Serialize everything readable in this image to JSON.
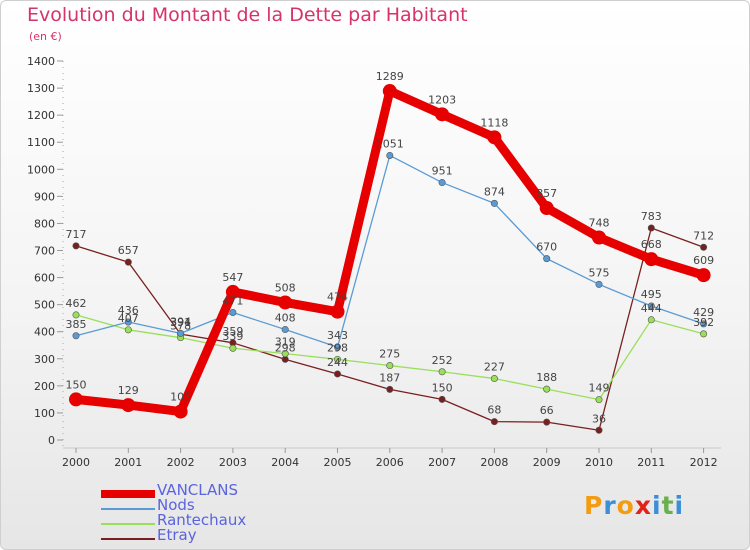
{
  "header": {
    "title": "Evolution du Montant de la Dette par Habitant",
    "unit": "(en €)"
  },
  "brand": {
    "letters": [
      "P",
      "r",
      "o",
      "x",
      "i",
      "t",
      "i"
    ],
    "colors": [
      "#f39c12",
      "#3a8fd8",
      "#f39c12",
      "#e2231a",
      "#3a8fd8",
      "#6ab04c",
      "#3a8fd8"
    ]
  },
  "chart_data": {
    "type": "line",
    "x": [
      "2000",
      "2001",
      "2002",
      "2003",
      "2004",
      "2005",
      "2006",
      "2007",
      "2008",
      "2009",
      "2010",
      "2011",
      "2012"
    ],
    "ylim": [
      0,
      1400
    ],
    "yticks": [
      0,
      100,
      200,
      300,
      400,
      500,
      600,
      700,
      800,
      900,
      1000,
      1100,
      1200,
      1300,
      1400
    ],
    "grid": false,
    "legend_position": "bottom-left",
    "series": [
      {
        "name": "Etray",
        "color": "#7a1f1f",
        "values": [
          717,
          657,
          391,
          359,
          298,
          244,
          187,
          150,
          68,
          66,
          36,
          783,
          712
        ]
      },
      {
        "name": "Rantechaux",
        "color": "#9adf5a",
        "values": [
          462,
          407,
          378,
          339,
          319,
          298,
          275,
          252,
          227,
          188,
          149,
          444,
          392
        ]
      },
      {
        "name": "Nods",
        "color": "#5b9bd5",
        "values": [
          385,
          436,
          394,
          471,
          408,
          343,
          1051,
          951,
          874,
          670,
          575,
          495,
          429
        ]
      },
      {
        "name": "VANCLANS",
        "color": "#e60000",
        "values": [
          150,
          129,
          105,
          547,
          508,
          474,
          1289,
          1203,
          1118,
          857,
          748,
          668,
          609
        ]
      }
    ]
  }
}
